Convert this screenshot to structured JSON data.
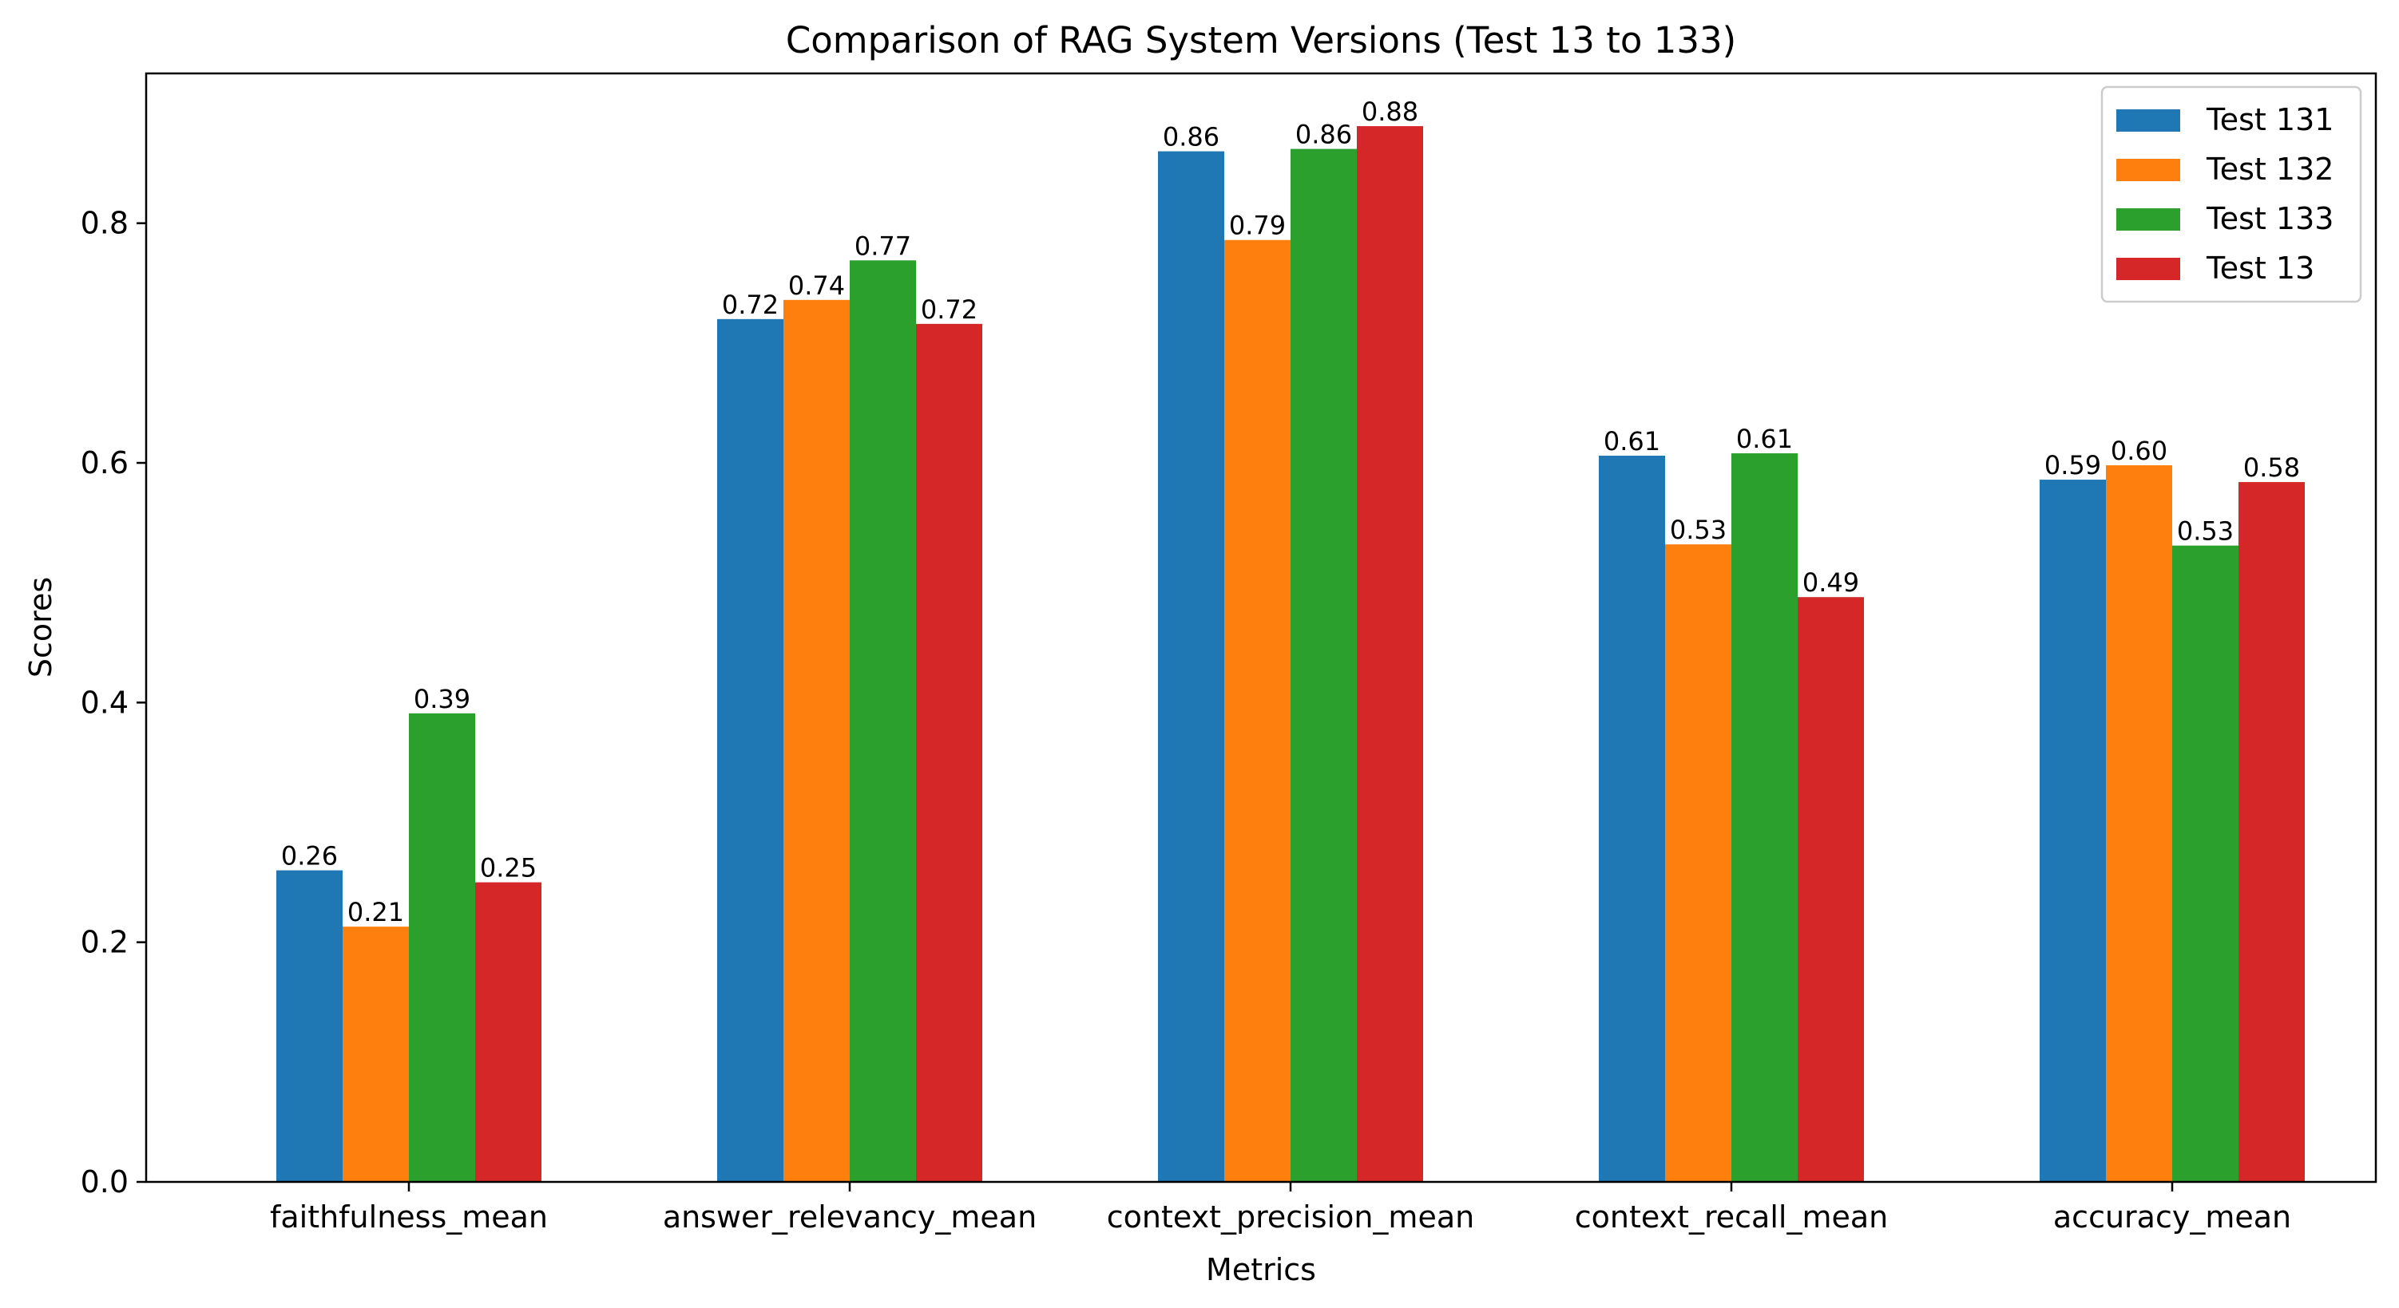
{
  "chart_data": {
    "type": "bar",
    "title": "Comparison of RAG System Versions (Test 13 to 133)",
    "xlabel": "Metrics",
    "ylabel": "Scores",
    "categories": [
      "faithfulness_mean",
      "answer_relevancy_mean",
      "context_precision_mean",
      "context_recall_mean",
      "accuracy_mean"
    ],
    "ylim": [
      0,
      0.925
    ],
    "yticks": [
      "0.0",
      "0.2",
      "0.4",
      "0.6",
      "0.8"
    ],
    "grid": false,
    "legend_position": "top-right",
    "series": [
      {
        "name": "Test 131",
        "color": "#1f77b4",
        "values": [
          0.26,
          0.72,
          0.86,
          0.606,
          0.586
        ],
        "labels": [
          "0.26",
          "0.72",
          "0.86",
          "0.61",
          "0.59"
        ]
      },
      {
        "name": "Test 132",
        "color": "#ff7f0e",
        "values": [
          0.213,
          0.736,
          0.786,
          0.532,
          0.598
        ],
        "labels": [
          "0.21",
          "0.74",
          "0.79",
          "0.53",
          "0.60"
        ]
      },
      {
        "name": "Test 133",
        "color": "#2ca02c",
        "values": [
          0.391,
          0.769,
          0.862,
          0.608,
          0.531
        ],
        "labels": [
          "0.39",
          "0.77",
          "0.86",
          "0.61",
          "0.53"
        ]
      },
      {
        "name": "Test 13",
        "color": "#d62728",
        "values": [
          0.25,
          0.716,
          0.881,
          0.488,
          0.584
        ],
        "labels": [
          "0.25",
          "0.72",
          "0.88",
          "0.49",
          "0.58"
        ]
      }
    ]
  }
}
